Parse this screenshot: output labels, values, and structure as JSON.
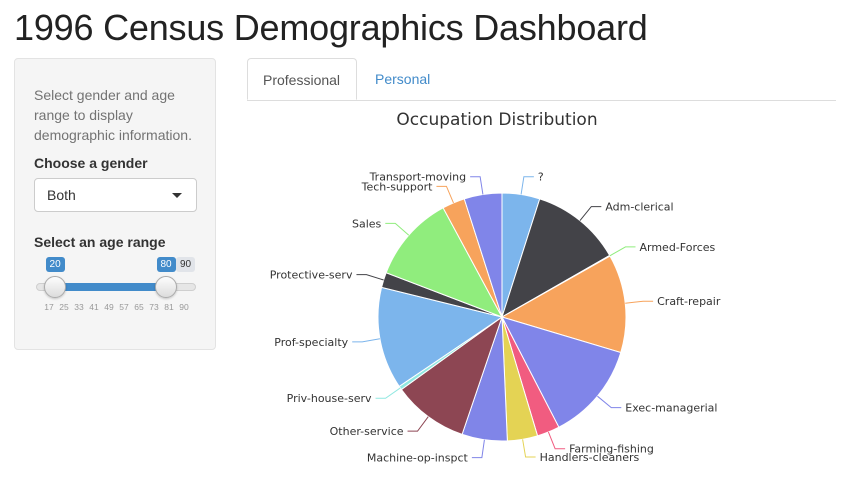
{
  "page": {
    "title": "1996 Census Demographics Dashboard"
  },
  "sidebar": {
    "help_text": "Select gender and age range to display demographic information.",
    "gender_label": "Choose a gender",
    "gender_value": "Both",
    "age_label": "Select an age range",
    "age_slider": {
      "min": 17,
      "max": 90,
      "from": 20,
      "to": 80,
      "from_label": "20",
      "to_label": "80",
      "max_label": "90",
      "ticks": [
        "17",
        "25",
        "33",
        "41",
        "49",
        "57",
        "65",
        "73",
        "81",
        "90"
      ]
    }
  },
  "tabs": [
    {
      "label": "Professional",
      "active": true
    },
    {
      "label": "Personal",
      "active": false
    }
  ],
  "chart_data": {
    "type": "pie",
    "title": "Occupation Distribution",
    "slices": [
      {
        "label": "?",
        "value": 5.0,
        "color": "#7cb5ec"
      },
      {
        "label": "Adm-clerical",
        "value": 12.0,
        "color": "#434348"
      },
      {
        "label": "Armed-Forces",
        "value": 0.1,
        "color": "#90ed7d"
      },
      {
        "label": "Craft-repair",
        "value": 13.0,
        "color": "#f7a35c"
      },
      {
        "label": "Exec-managerial",
        "value": 13.0,
        "color": "#8085e9"
      },
      {
        "label": "Farming-fishing",
        "value": 3.0,
        "color": "#f15c80"
      },
      {
        "label": "Handlers-cleaners",
        "value": 4.0,
        "color": "#e4d354"
      },
      {
        "label": "Machine-op-inspct",
        "value": 6.0,
        "color": "#8085e8"
      },
      {
        "label": "Other-service",
        "value": 10.0,
        "color": "#8d4653"
      },
      {
        "label": "Priv-house-serv",
        "value": 0.5,
        "color": "#91e8e1"
      },
      {
        "label": "Prof-specialty",
        "value": 13.5,
        "color": "#7cb5ec"
      },
      {
        "label": "Protective-serv",
        "value": 2.0,
        "color": "#434348"
      },
      {
        "label": "Sales",
        "value": 11.5,
        "color": "#90ed7d"
      },
      {
        "label": "Tech-support",
        "value": 3.0,
        "color": "#f7a35c"
      },
      {
        "label": "Transport-moving",
        "value": 5.0,
        "color": "#8085e9"
      }
    ]
  }
}
